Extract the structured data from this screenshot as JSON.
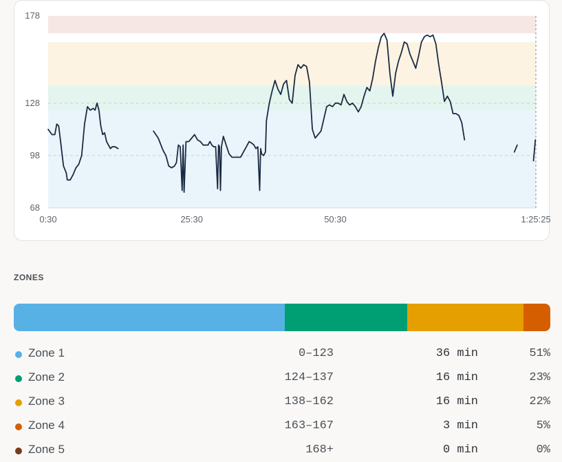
{
  "chart_data": {
    "type": "line",
    "y_ticks": [
      "178",
      "128",
      "98",
      "68"
    ],
    "ylim": [
      68,
      178
    ],
    "x_ticks": [
      "0:30",
      "25:30",
      "50:30",
      "1:25:25"
    ],
    "x_tick_seconds": [
      30,
      1530,
      3030,
      5125
    ],
    "xlim_seconds": [
      30,
      5125
    ],
    "grid": "dashed horizontal at 98 and 128",
    "zone_bands": [
      {
        "from": 68,
        "to": 124,
        "color": "#eaf4fb"
      },
      {
        "from": 124,
        "to": 138,
        "color": "#e4f4ee"
      },
      {
        "from": 138,
        "to": 163,
        "color": "#fcf3e2"
      },
      {
        "from": 163,
        "to": 168,
        "color": "#ffffff"
      },
      {
        "from": 168,
        "to": 178,
        "color": "#f6e7e4"
      }
    ],
    "series": [
      {
        "color": "#1b2a42",
        "segments": [
          [
            [
              30,
              113
            ],
            [
              70,
              110
            ],
            [
              100,
              110
            ],
            [
              120,
              116
            ],
            [
              140,
              115
            ],
            [
              160,
              106
            ],
            [
              190,
              92
            ],
            [
              220,
              88
            ],
            [
              230,
              84
            ],
            [
              260,
              84
            ],
            [
              290,
              87
            ],
            [
              320,
              91
            ],
            [
              350,
              93
            ],
            [
              380,
              98
            ],
            [
              410,
              116
            ],
            [
              440,
              126
            ],
            [
              470,
              124
            ],
            [
              500,
              125
            ],
            [
              520,
              124
            ],
            [
              540,
              128
            ],
            [
              560,
              124
            ],
            [
              580,
              115
            ],
            [
              600,
              110
            ],
            [
              620,
              111
            ],
            [
              640,
              106
            ],
            [
              660,
              104
            ],
            [
              680,
              102
            ],
            [
              700,
              103
            ],
            [
              730,
              103
            ],
            [
              760,
              102
            ]
          ],
          [
            [
              1130,
              112
            ],
            [
              1180,
              108
            ],
            [
              1230,
              101
            ],
            [
              1260,
              98
            ],
            [
              1290,
              92
            ],
            [
              1320,
              91
            ],
            [
              1350,
              92
            ],
            [
              1370,
              94
            ],
            [
              1390,
              104
            ],
            [
              1410,
              103
            ],
            [
              1430,
              78
            ],
            [
              1440,
              104
            ],
            [
              1450,
              77
            ],
            [
              1470,
              106
            ],
            [
              1500,
              106
            ],
            [
              1530,
              108
            ],
            [
              1560,
              110
            ],
            [
              1590,
              107
            ],
            [
              1620,
              106
            ],
            [
              1650,
              104
            ],
            [
              1680,
              104
            ],
            [
              1700,
              104
            ],
            [
              1720,
              106
            ],
            [
              1740,
              104
            ],
            [
              1760,
              103
            ],
            [
              1780,
              103
            ],
            [
              1800,
              79
            ],
            [
              1810,
              104
            ],
            [
              1820,
              103
            ],
            [
              1830,
              78
            ],
            [
              1840,
              103
            ],
            [
              1860,
              109
            ],
            [
              1890,
              104
            ],
            [
              1920,
              99
            ],
            [
              1950,
              97
            ],
            [
              1980,
              97
            ],
            [
              2010,
              97
            ],
            [
              2040,
              97
            ],
            [
              2070,
              100
            ],
            [
              2100,
              103
            ],
            [
              2130,
              106
            ],
            [
              2160,
              105
            ],
            [
              2180,
              104
            ],
            [
              2200,
              102
            ],
            [
              2220,
              103
            ],
            [
              2240,
              78
            ],
            [
              2250,
              102
            ],
            [
              2260,
              99
            ],
            [
              2280,
              98
            ],
            [
              2300,
              100
            ],
            [
              2310,
              118
            ],
            [
              2340,
              128
            ],
            [
              2370,
              135
            ],
            [
              2400,
              141
            ],
            [
              2430,
              136
            ],
            [
              2460,
              133
            ],
            [
              2490,
              139
            ],
            [
              2520,
              141
            ],
            [
              2550,
              130
            ],
            [
              2580,
              128
            ],
            [
              2610,
              144
            ],
            [
              2640,
              150
            ],
            [
              2670,
              148
            ],
            [
              2700,
              150
            ],
            [
              2730,
              149
            ],
            [
              2760,
              140
            ],
            [
              2790,
              113
            ],
            [
              2820,
              108
            ],
            [
              2850,
              110
            ],
            [
              2880,
              112
            ],
            [
              2910,
              119
            ],
            [
              2940,
              126
            ],
            [
              2970,
              127
            ],
            [
              3000,
              126
            ],
            [
              3030,
              128
            ],
            [
              3060,
              128
            ],
            [
              3090,
              127
            ],
            [
              3120,
              133
            ],
            [
              3150,
              129
            ],
            [
              3180,
              127
            ],
            [
              3210,
              128
            ],
            [
              3240,
              126
            ],
            [
              3270,
              123
            ],
            [
              3300,
              126
            ],
            [
              3330,
              132
            ],
            [
              3360,
              137
            ],
            [
              3390,
              135
            ],
            [
              3420,
              142
            ],
            [
              3450,
              152
            ],
            [
              3480,
              160
            ],
            [
              3510,
              166
            ],
            [
              3540,
              168
            ],
            [
              3570,
              164
            ],
            [
              3600,
              145
            ],
            [
              3630,
              132
            ],
            [
              3660,
              145
            ],
            [
              3690,
              152
            ],
            [
              3720,
              157
            ],
            [
              3750,
              163
            ],
            [
              3780,
              162
            ],
            [
              3810,
              156
            ],
            [
              3840,
              152
            ],
            [
              3870,
              148
            ],
            [
              3900,
              155
            ],
            [
              3930,
              163
            ],
            [
              3960,
              166
            ],
            [
              3990,
              167
            ],
            [
              4020,
              166
            ],
            [
              4050,
              167
            ],
            [
              4080,
              162
            ],
            [
              4110,
              150
            ],
            [
              4140,
              140
            ],
            [
              4170,
              129
            ],
            [
              4200,
              132
            ],
            [
              4230,
              129
            ],
            [
              4260,
              122
            ],
            [
              4290,
              122
            ],
            [
              4320,
              121
            ],
            [
              4350,
              117
            ],
            [
              4380,
              107
            ]
          ],
          [
            [
              4900,
              100
            ],
            [
              4930,
              104
            ]
          ],
          [
            [
              5100,
              95
            ],
            [
              5120,
              107
            ]
          ]
        ]
      }
    ]
  },
  "zones": {
    "title": "ZONES",
    "bar": [
      {
        "percent": 51,
        "color": "#57b1e5"
      },
      {
        "percent": 23,
        "color": "#009e73"
      },
      {
        "percent": 22,
        "color": "#e69f00"
      },
      {
        "percent": 5,
        "color": "#d55e00"
      }
    ],
    "rows": [
      {
        "name": "Zone 1",
        "range": "0–123",
        "time": "36 min",
        "percent": "51%",
        "color": "#57b1e5"
      },
      {
        "name": "Zone 2",
        "range": "124–137",
        "time": "16 min",
        "percent": "23%",
        "color": "#009e73"
      },
      {
        "name": "Zone 3",
        "range": "138–162",
        "time": "16 min",
        "percent": "22%",
        "color": "#e69f00"
      },
      {
        "name": "Zone 4",
        "range": "163–167",
        "time": "3 min",
        "percent": "5%",
        "color": "#d55e00"
      },
      {
        "name": "Zone 5",
        "range": "168+",
        "time": "0 min",
        "percent": "0%",
        "color": "#7a3b1c"
      }
    ]
  }
}
